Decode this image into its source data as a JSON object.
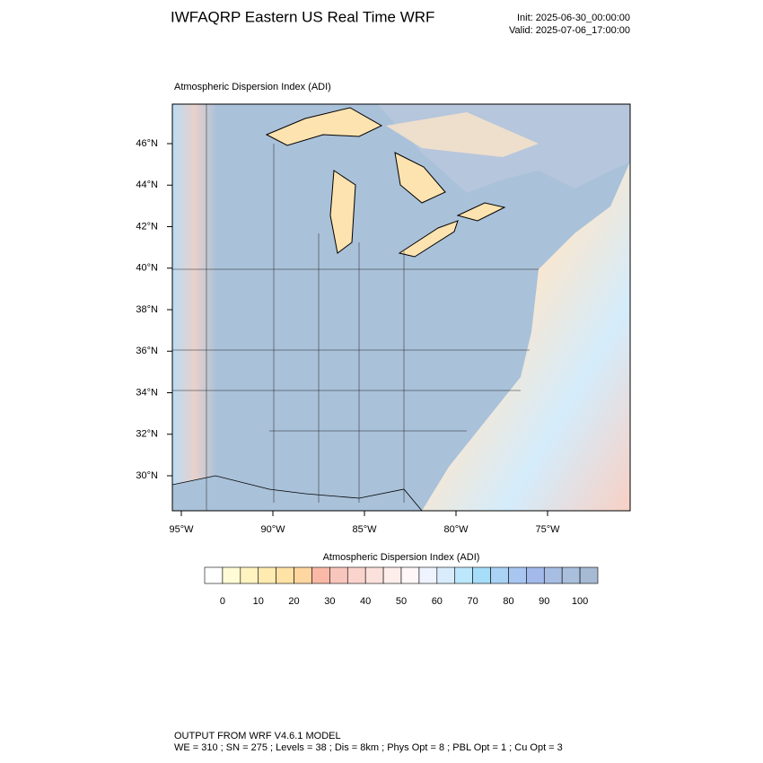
{
  "header": {
    "title": "IWFAQRP Eastern US Real Time WRF",
    "init": "Init: 2025-06-30_00:00:00",
    "valid": "Valid: 2025-07-06_17:00:00"
  },
  "map": {
    "subtitle": "Atmospheric Dispersion Index   (ADI)",
    "lat_labels": [
      "46°N",
      "44°N",
      "42°N",
      "40°N",
      "38°N",
      "36°N",
      "34°N",
      "32°N",
      "30°N"
    ],
    "lon_labels": [
      "95°W",
      "90°W",
      "85°W",
      "80°W",
      "75°W"
    ]
  },
  "colorbar": {
    "title": "Atmospheric Dispersion Index  (ADI)",
    "ticks": [
      0,
      10,
      20,
      30,
      40,
      50,
      60,
      70,
      80,
      90,
      100
    ],
    "colors": [
      "#ffffff",
      "#fffbd6",
      "#fff3c0",
      "#ffebb0",
      "#ffe2a6",
      "#fed6a0",
      "#f9b9a6",
      "#f8c6bc",
      "#fad4cc",
      "#fbe1dc",
      "#fdeeeb",
      "#fff7f7",
      "#eef3ff",
      "#d9ecfb",
      "#bce7fc",
      "#a6ddf8",
      "#a9d2f4",
      "#a8c6ef",
      "#a2b9ea",
      "#a7bde2",
      "#a9bfdb",
      "#a7bad4"
    ]
  },
  "footer": {
    "line1": "OUTPUT FROM WRF V4.6.1 MODEL",
    "line2": "WE = 310 ; SN = 275 ; Levels = 38 ; Dis = 8km ; Phys Opt = 8 ; PBL Opt = 1 ; Cu Opt = 3"
  }
}
